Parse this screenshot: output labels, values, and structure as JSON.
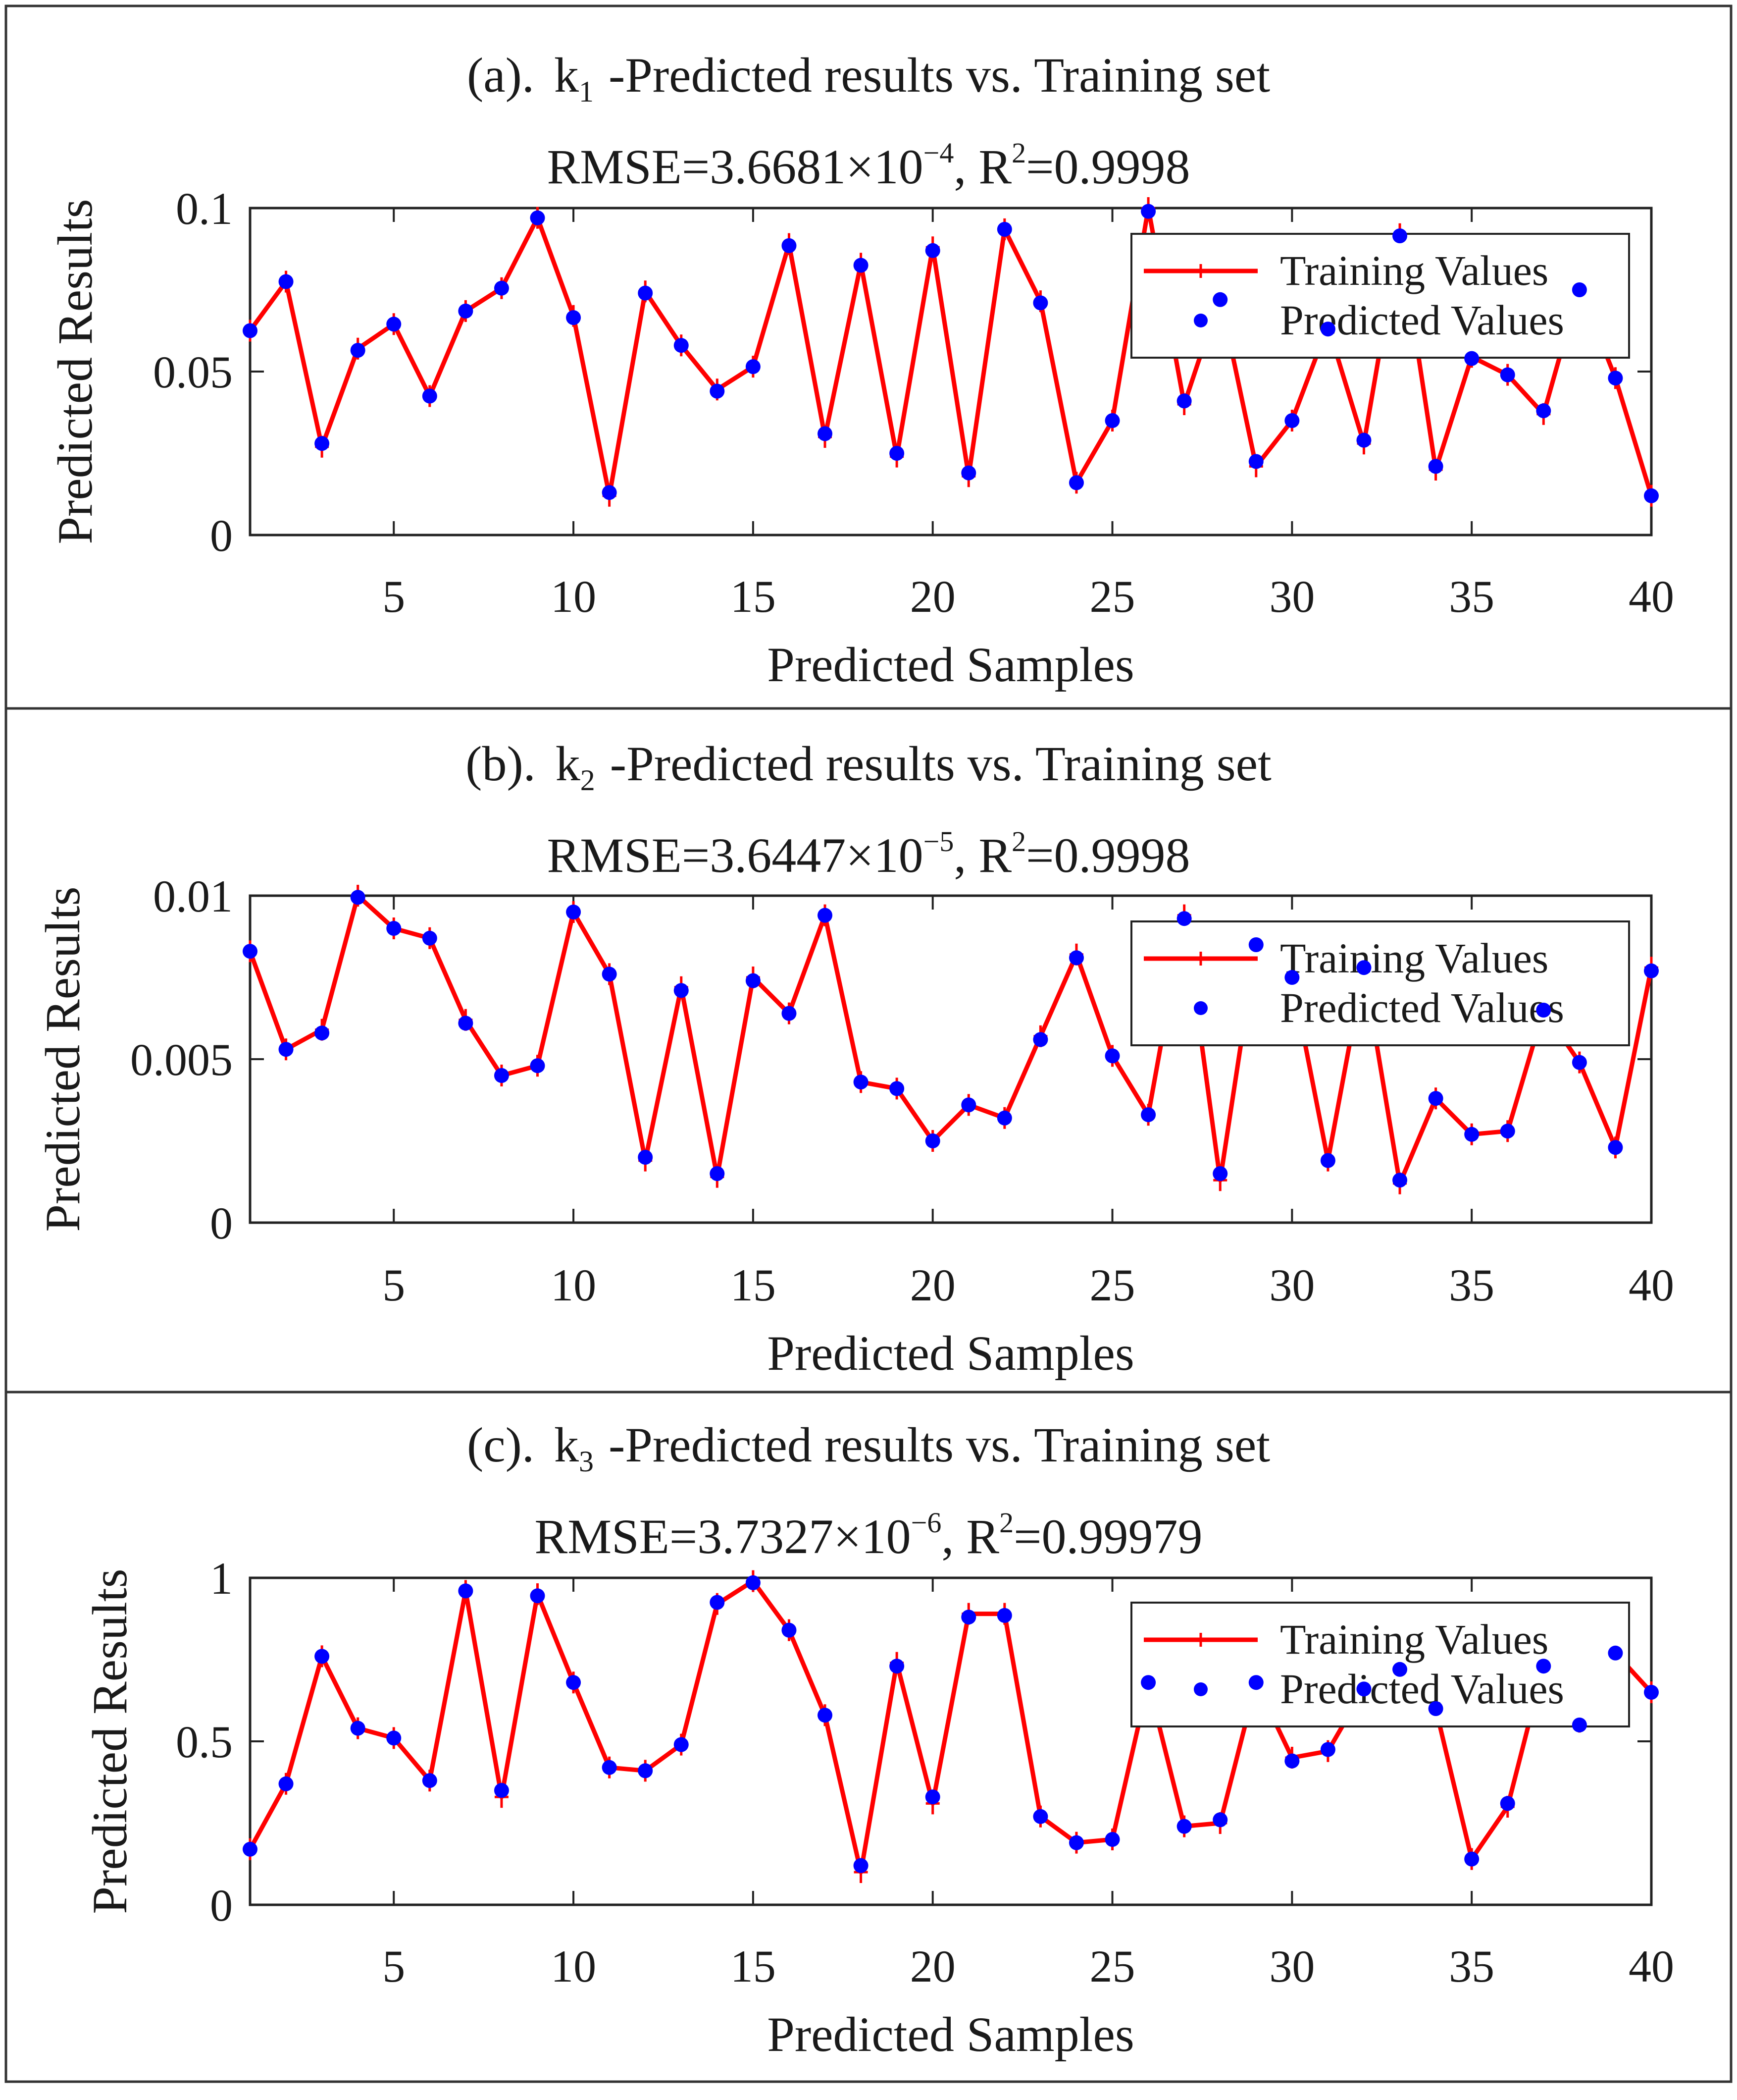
{
  "colors": {
    "training": "#ff0000",
    "predicted": "#0000ff",
    "axis": "#222222"
  },
  "chart_data": [
    {
      "type": "line",
      "panel_label": "(a).",
      "k_base": "k",
      "k_sub": "1",
      "title_rest": "-Predicted results vs. Training set",
      "metric_prefix": "RMSE=3.6681×10",
      "metric_exp": "−4",
      "metric_mid": ", R",
      "metric_r2_exp": "2",
      "metric_suffix": "=0.9998",
      "xlabel": "Predicted Samples",
      "ylabel": "Predicted Results",
      "xlim": [
        1,
        40
      ],
      "ylim": [
        0,
        0.1
      ],
      "xticks": [
        "5",
        "10",
        "15",
        "20",
        "25",
        "30",
        "35",
        "40"
      ],
      "xtick_values": [
        5,
        10,
        15,
        20,
        25,
        30,
        35,
        40
      ],
      "yticks": [
        "0",
        "0.05",
        "0.1"
      ],
      "ytick_values": [
        0,
        0.05,
        0.1
      ],
      "legend": [
        "Training Values",
        "Predicted Values"
      ],
      "x": [
        1,
        2,
        3,
        4,
        5,
        6,
        7,
        8,
        9,
        10,
        11,
        12,
        13,
        14,
        15,
        16,
        17,
        18,
        19,
        20,
        21,
        22,
        23,
        24,
        25,
        26,
        27,
        28,
        29,
        30,
        31,
        32,
        33,
        34,
        35,
        36,
        37,
        38,
        39,
        40
      ],
      "series": [
        {
          "name": "Training Values",
          "values": [
            0.0625,
            0.0775,
            0.027,
            0.057,
            0.0645,
            0.0425,
            0.0685,
            0.0755,
            0.097,
            0.067,
            0.012,
            0.0745,
            0.058,
            0.0445,
            0.0515,
            0.089,
            0.03,
            0.083,
            0.024,
            0.088,
            0.018,
            0.0935,
            0.0715,
            0.016,
            0.035,
            0.1,
            0.04,
            0.073,
            0.021,
            0.035,
            0.064,
            0.028,
            0.092,
            0.02,
            0.0545,
            0.049,
            0.037,
            0.076,
            0.048,
            0.012
          ]
        },
        {
          "name": "Predicted Values",
          "values": [
            0.0625,
            0.0775,
            0.028,
            0.0565,
            0.0645,
            0.0425,
            0.0685,
            0.0755,
            0.097,
            0.0665,
            0.013,
            0.074,
            0.058,
            0.044,
            0.0515,
            0.0885,
            0.031,
            0.0825,
            0.025,
            0.087,
            0.019,
            0.0935,
            0.071,
            0.016,
            0.035,
            0.099,
            0.041,
            0.072,
            0.0225,
            0.035,
            0.063,
            0.029,
            0.0915,
            0.021,
            0.054,
            0.049,
            0.038,
            0.075,
            0.048,
            0.012
          ]
        }
      ]
    },
    {
      "type": "line",
      "panel_label": "(b).",
      "k_base": "k",
      "k_sub": "2",
      "title_rest": "-Predicted results vs. Training set",
      "metric_prefix": "RMSE=3.6447×10",
      "metric_exp": "−5",
      "metric_mid": ", R",
      "metric_r2_exp": "2",
      "metric_suffix": "=0.9998",
      "xlabel": "Predicted Samples",
      "ylabel": "Predicted Results",
      "xlim": [
        1,
        40
      ],
      "ylim": [
        0,
        0.01
      ],
      "xticks": [
        "5",
        "10",
        "15",
        "20",
        "25",
        "30",
        "35",
        "40"
      ],
      "xtick_values": [
        5,
        10,
        15,
        20,
        25,
        30,
        35,
        40
      ],
      "yticks": [
        "0",
        "0.005",
        "0.01"
      ],
      "ytick_values": [
        0,
        0.005,
        0.01
      ],
      "legend": [
        "Training Values",
        "Predicted Values"
      ],
      "x": [
        1,
        2,
        3,
        4,
        5,
        6,
        7,
        8,
        9,
        10,
        11,
        12,
        13,
        14,
        15,
        16,
        17,
        18,
        19,
        20,
        21,
        22,
        23,
        24,
        25,
        26,
        27,
        28,
        29,
        30,
        31,
        32,
        33,
        34,
        35,
        36,
        37,
        38,
        39,
        40
      ],
      "series": [
        {
          "name": "Training Values",
          "values": [
            0.0083,
            0.0053,
            0.0059,
            0.01,
            0.009,
            0.0087,
            0.0062,
            0.0045,
            0.0048,
            0.0095,
            0.0076,
            0.0019,
            0.0072,
            0.0014,
            0.0075,
            0.0064,
            0.0094,
            0.0043,
            0.0041,
            0.0025,
            0.0036,
            0.0032,
            0.0057,
            0.0082,
            0.0051,
            0.0033,
            0.0094,
            0.0013,
            0.0085,
            0.0075,
            0.0019,
            0.0078,
            0.0012,
            0.0038,
            0.0027,
            0.0028,
            0.0065,
            0.0049,
            0.0023,
            0.0078
          ]
        },
        {
          "name": "Predicted Values",
          "values": [
            0.0083,
            0.0053,
            0.0058,
            0.00995,
            0.009,
            0.0087,
            0.0061,
            0.0045,
            0.0048,
            0.0095,
            0.0076,
            0.002,
            0.0071,
            0.0015,
            0.0074,
            0.0064,
            0.0094,
            0.0043,
            0.0041,
            0.0025,
            0.0036,
            0.0032,
            0.0056,
            0.0081,
            0.0051,
            0.0033,
            0.0093,
            0.0015,
            0.0085,
            0.0075,
            0.0019,
            0.0078,
            0.0013,
            0.0038,
            0.0027,
            0.0028,
            0.0065,
            0.0049,
            0.0023,
            0.0077
          ]
        }
      ]
    },
    {
      "type": "line",
      "panel_label": "(c).",
      "k_base": "k",
      "k_sub": "3",
      "title_rest": "-Predicted results vs. Training set",
      "metric_prefix": "RMSE=3.7327×10",
      "metric_exp": "−6",
      "metric_mid": ", R",
      "metric_r2_exp": "2",
      "metric_suffix": "=0.99979",
      "xlabel": "Predicted Samples",
      "ylabel": "Predicted Results",
      "xlim": [
        1,
        40
      ],
      "ylim": [
        0,
        1
      ],
      "xticks": [
        "5",
        "10",
        "15",
        "20",
        "25",
        "30",
        "35",
        "40"
      ],
      "xtick_values": [
        5,
        10,
        15,
        20,
        25,
        30,
        35,
        40
      ],
      "yticks": [
        "0",
        "0.5",
        "1"
      ],
      "ytick_values": [
        0,
        0.5,
        1
      ],
      "legend": [
        "Training Values",
        "Predicted Values"
      ],
      "x": [
        1,
        2,
        3,
        4,
        5,
        6,
        7,
        8,
        9,
        10,
        11,
        12,
        13,
        14,
        15,
        16,
        17,
        18,
        19,
        20,
        21,
        22,
        23,
        24,
        25,
        26,
        27,
        28,
        29,
        30,
        31,
        32,
        33,
        34,
        35,
        36,
        37,
        38,
        39,
        40
      ],
      "series": [
        {
          "name": "Training Values",
          "values": [
            0.17,
            0.37,
            0.76,
            0.54,
            0.51,
            0.38,
            0.96,
            0.33,
            0.95,
            0.68,
            0.42,
            0.41,
            0.49,
            0.92,
            0.99,
            0.84,
            0.58,
            0.1,
            0.74,
            0.31,
            0.89,
            0.89,
            0.27,
            0.19,
            0.2,
            0.68,
            0.24,
            0.25,
            0.68,
            0.45,
            0.47,
            0.66,
            0.72,
            0.6,
            0.14,
            0.3,
            0.73,
            0.56,
            0.77,
            0.65
          ]
        },
        {
          "name": "Predicted Values",
          "values": [
            0.17,
            0.37,
            0.76,
            0.54,
            0.51,
            0.38,
            0.96,
            0.35,
            0.945,
            0.68,
            0.42,
            0.41,
            0.49,
            0.925,
            0.985,
            0.84,
            0.58,
            0.12,
            0.73,
            0.33,
            0.88,
            0.885,
            0.27,
            0.19,
            0.2,
            0.68,
            0.24,
            0.26,
            0.68,
            0.44,
            0.475,
            0.66,
            0.72,
            0.6,
            0.14,
            0.31,
            0.73,
            0.55,
            0.77,
            0.65
          ]
        }
      ]
    }
  ]
}
